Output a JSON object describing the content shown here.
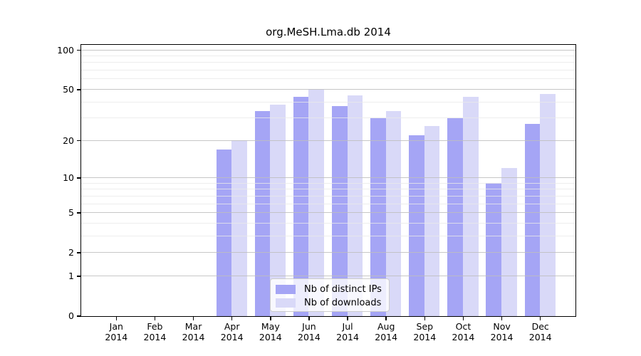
{
  "chart_data": {
    "type": "bar",
    "title": "org.MeSH.Lma.db 2014",
    "categories": [
      "Jan",
      "Feb",
      "Mar",
      "Apr",
      "May",
      "Jun",
      "Jul",
      "Aug",
      "Sep",
      "Oct",
      "Nov",
      "Dec"
    ],
    "year_label": "2014",
    "series": [
      {
        "name": "Nb of distinct IPs",
        "color": "#a5a5f5",
        "values": [
          0,
          0,
          0,
          17,
          34,
          44,
          37,
          30,
          22,
          30,
          9,
          27
        ]
      },
      {
        "name": "Nb of downloads",
        "color": "#d9d9f8",
        "values": [
          0,
          0,
          0,
          20,
          38,
          50,
          45,
          34,
          26,
          44,
          12,
          46
        ]
      }
    ],
    "y_axis": {
      "scale": "log10(value+1)",
      "tick_values": [
        0,
        1,
        2,
        5,
        10,
        20,
        50,
        100
      ],
      "minor_gridlines": [
        3,
        4,
        6,
        7,
        8,
        9,
        30,
        40,
        60,
        70,
        80,
        90
      ],
      "range_top": 110
    },
    "x_axis": {
      "label_lines": 2
    },
    "grid": "on",
    "legend": {
      "position": "bottom-center"
    },
    "style": {
      "major_grid_color": "#bdbdbd",
      "minor_grid_color": "#e9e9e9",
      "axis_color": "#000000",
      "background": "#ffffff"
    }
  }
}
